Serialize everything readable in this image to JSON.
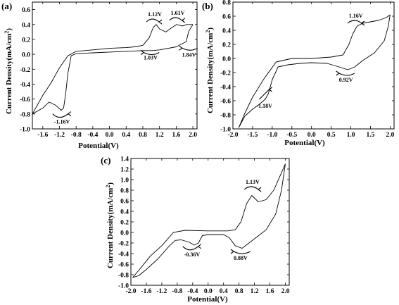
{
  "chart_data": [
    {
      "panel": "(a)",
      "type": "line",
      "xlabel": "Potential(V)",
      "ylabel": "Current Density(mA/cm",
      "ylabel_sup": "2",
      "ylabel_close": ")",
      "xlim": [
        -1.85,
        2.1
      ],
      "ylim": [
        -1.0,
        0.7
      ],
      "xticks": [
        -1.6,
        -1.2,
        -0.8,
        -0.4,
        0.0,
        0.4,
        0.8,
        1.2,
        1.6,
        2.0
      ],
      "yticks": [
        -1.0,
        -0.8,
        -0.6,
        -0.4,
        -0.2,
        0.0,
        0.2,
        0.4,
        0.6
      ],
      "grid": false,
      "series": [
        {
          "points": [
            [
              2.0,
              0.4
            ],
            [
              1.9,
              0.31
            ],
            [
              1.84,
              0.17
            ],
            [
              1.6,
              0.1
            ],
            [
              1.2,
              0.06
            ],
            [
              1.03,
              0.05
            ],
            [
              0.8,
              0.05
            ],
            [
              0.4,
              0.04
            ],
            [
              0.0,
              0.03
            ],
            [
              -0.4,
              0.02
            ],
            [
              -0.8,
              0.01
            ],
            [
              -0.92,
              -0.02
            ],
            [
              -1.0,
              -0.26
            ],
            [
              -1.05,
              -0.52
            ],
            [
              -1.1,
              -0.72
            ],
            [
              -1.16,
              -0.75
            ],
            [
              -1.3,
              -0.68
            ],
            [
              -1.45,
              -0.64
            ],
            [
              -1.6,
              -0.72
            ],
            [
              -1.85,
              -0.8
            ],
            [
              -1.6,
              -0.55
            ],
            [
              -1.4,
              -0.38
            ],
            [
              -1.2,
              -0.18
            ],
            [
              -1.0,
              -0.02
            ],
            [
              -0.8,
              0.04
            ],
            [
              -0.4,
              0.06
            ],
            [
              0.0,
              0.08
            ],
            [
              0.4,
              0.09
            ],
            [
              0.6,
              0.1
            ],
            [
              0.8,
              0.12
            ],
            [
              0.95,
              0.22
            ],
            [
              1.05,
              0.36
            ],
            [
              1.12,
              0.4
            ],
            [
              1.2,
              0.34
            ],
            [
              1.35,
              0.3
            ],
            [
              1.5,
              0.36
            ],
            [
              1.61,
              0.4
            ],
            [
              1.75,
              0.38
            ],
            [
              1.85,
              0.4
            ],
            [
              2.0,
              0.4
            ]
          ]
        }
      ],
      "annotations": [
        {
          "text": "1.12V",
          "x": 0.92,
          "y": 0.51
        },
        {
          "text": "1.61V",
          "x": 1.47,
          "y": 0.53
        },
        {
          "text": "1.03V",
          "x": 0.82,
          "y": -0.07
        },
        {
          "text": "1.84V",
          "x": 1.74,
          "y": -0.03
        },
        {
          "text": "-1.16V",
          "x": -1.33,
          "y": -0.93
        }
      ]
    },
    {
      "panel": "(b)",
      "type": "line",
      "xlabel": "Potential(V)",
      "ylabel": "Current Density(mA/cm",
      "ylabel_sup": "2",
      "ylabel_close": ")",
      "xlim": [
        -2.0,
        2.1
      ],
      "ylim": [
        -1.0,
        0.8
      ],
      "xticks": [
        -2.0,
        -1.5,
        -1.0,
        -0.5,
        0.0,
        0.5,
        1.0,
        1.5,
        2.0
      ],
      "yticks": [
        -1.0,
        -0.8,
        -0.6,
        -0.4,
        -0.2,
        0.0,
        0.2,
        0.4,
        0.6,
        0.8
      ],
      "grid": false,
      "series": [
        {
          "points": [
            [
              2.0,
              0.62
            ],
            [
              1.95,
              0.45
            ],
            [
              1.85,
              0.25
            ],
            [
              1.6,
              0.08
            ],
            [
              1.3,
              -0.03
            ],
            [
              1.1,
              -0.12
            ],
            [
              0.92,
              -0.16
            ],
            [
              0.7,
              -0.12
            ],
            [
              0.4,
              -0.07
            ],
            [
              0.0,
              -0.06
            ],
            [
              -0.3,
              -0.07
            ],
            [
              -0.6,
              -0.09
            ],
            [
              -0.85,
              -0.12
            ],
            [
              -1.0,
              -0.3
            ],
            [
              -1.1,
              -0.5
            ],
            [
              -1.18,
              -0.58
            ],
            [
              -1.35,
              -0.66
            ],
            [
              -1.5,
              -0.72
            ],
            [
              -1.7,
              -0.82
            ],
            [
              -1.85,
              -0.98
            ],
            [
              -1.7,
              -0.78
            ],
            [
              -1.5,
              -0.55
            ],
            [
              -1.2,
              -0.28
            ],
            [
              -0.9,
              -0.05
            ],
            [
              -0.5,
              0.0
            ],
            [
              0.0,
              0.0
            ],
            [
              0.5,
              0.02
            ],
            [
              0.8,
              0.05
            ],
            [
              0.95,
              0.2
            ],
            [
              1.05,
              0.35
            ],
            [
              1.16,
              0.46
            ],
            [
              1.3,
              0.5
            ],
            [
              1.5,
              0.52
            ],
            [
              1.7,
              0.54
            ],
            [
              1.9,
              0.58
            ],
            [
              2.0,
              0.62
            ]
          ]
        }
      ],
      "annotations": [
        {
          "text": "1.16V",
          "x": 0.95,
          "y": 0.58
        },
        {
          "text": "0.92V",
          "x": 0.7,
          "y": -0.33
        },
        {
          "text": "-1.18V",
          "x": -1.4,
          "y": -0.7
        }
      ]
    },
    {
      "panel": "(c)",
      "type": "line",
      "xlabel": "Potential(V)",
      "ylabel": "Current Density(mA/cm",
      "ylabel_sup": "2",
      "ylabel_close": ")",
      "xlim": [
        -2.0,
        2.1
      ],
      "ylim": [
        -1.0,
        1.4
      ],
      "xticks": [
        -2.0,
        -1.6,
        -1.2,
        -0.8,
        -0.4,
        0.0,
        0.4,
        0.8,
        1.2,
        1.6,
        2.0
      ],
      "yticks": [
        -1.0,
        -0.8,
        -0.6,
        -0.4,
        -0.2,
        0.0,
        0.2,
        0.4,
        0.6,
        0.8,
        1.0,
        1.2,
        1.4
      ],
      "grid": false,
      "series": [
        {
          "points": [
            [
              2.0,
              1.3
            ],
            [
              1.9,
              0.8
            ],
            [
              1.75,
              0.35
            ],
            [
              1.5,
              0.05
            ],
            [
              1.2,
              -0.12
            ],
            [
              0.88,
              -0.3
            ],
            [
              0.7,
              -0.25
            ],
            [
              0.55,
              -0.1
            ],
            [
              0.4,
              -0.04
            ],
            [
              0.0,
              -0.04
            ],
            [
              -0.15,
              -0.06
            ],
            [
              -0.25,
              -0.2
            ],
            [
              -0.36,
              -0.24
            ],
            [
              -0.5,
              -0.18
            ],
            [
              -0.7,
              -0.14
            ],
            [
              -0.85,
              -0.15
            ],
            [
              -1.0,
              -0.25
            ],
            [
              -1.3,
              -0.5
            ],
            [
              -1.6,
              -0.7
            ],
            [
              -1.8,
              -0.82
            ],
            [
              -1.95,
              -0.85
            ],
            [
              -1.8,
              -0.72
            ],
            [
              -1.5,
              -0.45
            ],
            [
              -1.2,
              -0.25
            ],
            [
              -0.9,
              0.0
            ],
            [
              -0.6,
              0.04
            ],
            [
              0.0,
              0.03
            ],
            [
              0.5,
              0.03
            ],
            [
              0.7,
              0.05
            ],
            [
              0.85,
              0.2
            ],
            [
              1.0,
              0.55
            ],
            [
              1.13,
              0.7
            ],
            [
              1.3,
              0.58
            ],
            [
              1.5,
              0.62
            ],
            [
              1.7,
              0.8
            ],
            [
              1.85,
              1.05
            ],
            [
              2.0,
              1.3
            ]
          ]
        }
      ],
      "annotations": [
        {
          "text": "1.13V",
          "x": 0.97,
          "y": 0.92
        },
        {
          "text": "-0.36V",
          "x": -0.62,
          "y": -0.45
        },
        {
          "text": "0.88V",
          "x": 0.66,
          "y": -0.52
        }
      ]
    }
  ]
}
